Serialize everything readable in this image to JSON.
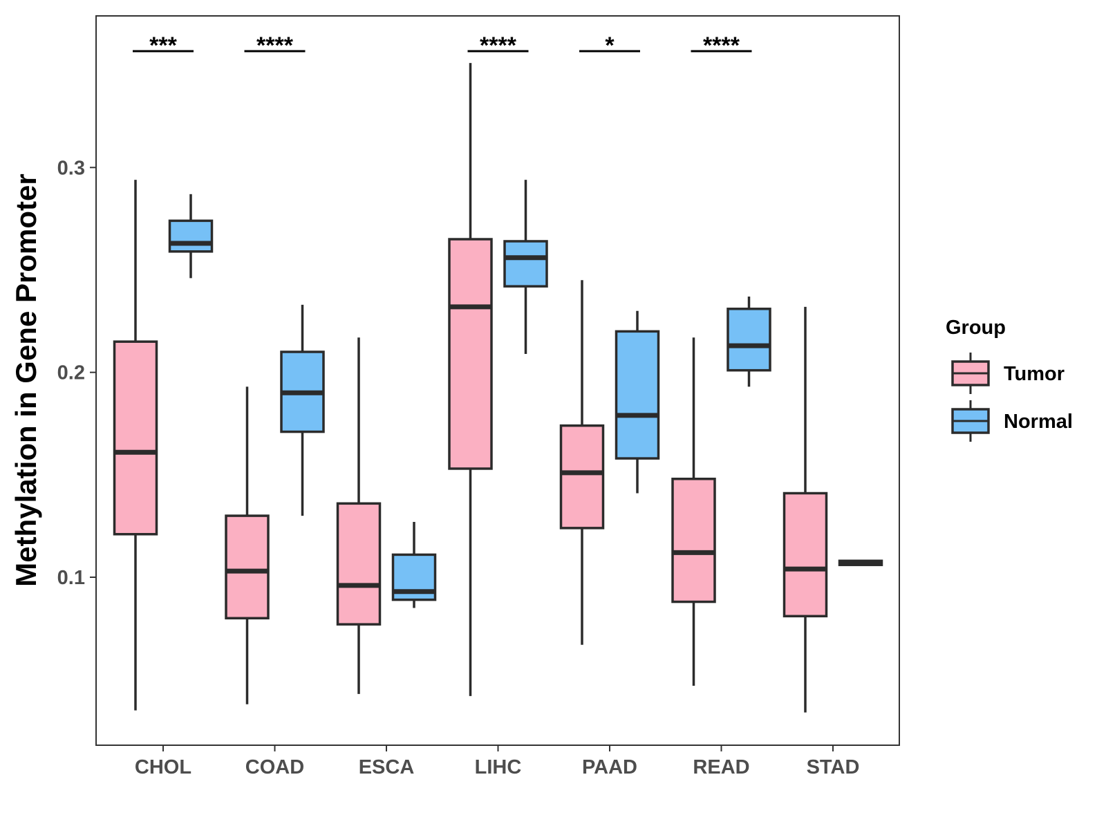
{
  "chart_data": {
    "type": "boxplot",
    "title": "",
    "xlabel": "",
    "ylabel": "Methylation in Gene Promoter",
    "ylim": [
      0.018,
      0.374
    ],
    "yticks": [
      0.1,
      0.2,
      0.3
    ],
    "ytick_labels": [
      "0.1",
      "0.2",
      "0.3"
    ],
    "categories": [
      "CHOL",
      "COAD",
      "ESCA",
      "LIHC",
      "PAAD",
      "READ",
      "STAD"
    ],
    "legend": {
      "title": "Group",
      "position": "right",
      "entries": [
        {
          "label": "Tumor",
          "color": "#FBB0C2"
        },
        {
          "label": "Normal",
          "color": "#76C0F6"
        }
      ]
    },
    "series": [
      {
        "name": "Tumor",
        "color": "#FBB0C2",
        "boxes": [
          {
            "category": "CHOL",
            "min": 0.035,
            "q1": 0.121,
            "median": 0.161,
            "q3": 0.215,
            "max": 0.294
          },
          {
            "category": "COAD",
            "min": 0.038,
            "q1": 0.08,
            "median": 0.103,
            "q3": 0.13,
            "max": 0.193
          },
          {
            "category": "ESCA",
            "min": 0.043,
            "q1": 0.077,
            "median": 0.096,
            "q3": 0.136,
            "max": 0.217
          },
          {
            "category": "LIHC",
            "min": 0.042,
            "q1": 0.153,
            "median": 0.232,
            "q3": 0.265,
            "max": 0.351
          },
          {
            "category": "PAAD",
            "min": 0.067,
            "q1": 0.124,
            "median": 0.151,
            "q3": 0.174,
            "max": 0.245
          },
          {
            "category": "READ",
            "min": 0.047,
            "q1": 0.088,
            "median": 0.112,
            "q3": 0.148,
            "max": 0.217
          },
          {
            "category": "STAD",
            "min": 0.034,
            "q1": 0.081,
            "median": 0.104,
            "q3": 0.141,
            "max": 0.232
          }
        ]
      },
      {
        "name": "Normal",
        "color": "#76C0F6",
        "boxes": [
          {
            "category": "CHOL",
            "min": 0.246,
            "q1": 0.259,
            "median": 0.263,
            "q3": 0.274,
            "max": 0.287
          },
          {
            "category": "COAD",
            "min": 0.13,
            "q1": 0.171,
            "median": 0.19,
            "q3": 0.21,
            "max": 0.233
          },
          {
            "category": "ESCA",
            "min": 0.085,
            "q1": 0.089,
            "median": 0.093,
            "q3": 0.111,
            "max": 0.127
          },
          {
            "category": "LIHC",
            "min": 0.209,
            "q1": 0.242,
            "median": 0.256,
            "q3": 0.264,
            "max": 0.294
          },
          {
            "category": "PAAD",
            "min": 0.141,
            "q1": 0.158,
            "median": 0.179,
            "q3": 0.22,
            "max": 0.23
          },
          {
            "category": "READ",
            "min": 0.193,
            "q1": 0.201,
            "median": 0.213,
            "q3": 0.231,
            "max": 0.237
          },
          {
            "category": "STAD",
            "min": 0.106,
            "q1": 0.106,
            "median": 0.107,
            "q3": 0.108,
            "max": 0.108
          }
        ]
      }
    ],
    "significance": [
      {
        "category": "CHOL",
        "label": "***"
      },
      {
        "category": "COAD",
        "label": "****"
      },
      {
        "category": "LIHC",
        "label": "****"
      },
      {
        "category": "PAAD",
        "label": "*"
      },
      {
        "category": "READ",
        "label": "****"
      }
    ],
    "grid": false
  }
}
